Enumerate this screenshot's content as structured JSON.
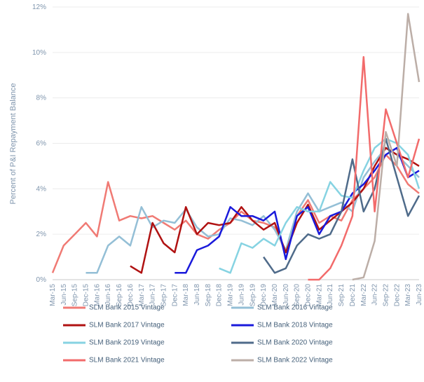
{
  "chart_data": {
    "type": "line",
    "y_axis_label": "Percent of P&I Repayment  Balance",
    "categories": [
      "Mar-15",
      "Jun-15",
      "Sep-15",
      "Dec-15",
      "Mar-16",
      "Jun-16",
      "Sep-16",
      "Dec-16",
      "Mar-17",
      "Jun-17",
      "Sep-17",
      "Dec-17",
      "Mar-18",
      "Jun-18",
      "Sep-18",
      "Dec-18",
      "Mar-19",
      "Jun-19",
      "Sep-19",
      "Dec-19",
      "Mar-20",
      "Jun-20",
      "Sep-20",
      "Dec-20",
      "Mar-21",
      "Jun-21",
      "Sep-21",
      "Dec-21",
      "Mar-22",
      "Jun-22",
      "Sep-22",
      "Dec-22",
      "Mar-23",
      "Jun-23"
    ],
    "ylim": [
      0,
      12
    ],
    "yticks": [
      {
        "value": 0,
        "label": "0%"
      },
      {
        "value": 2,
        "label": "2%"
      },
      {
        "value": 4,
        "label": "4%"
      },
      {
        "value": 6,
        "label": "6%"
      },
      {
        "value": 8,
        "label": "8%"
      },
      {
        "value": 10,
        "label": "10%"
      },
      {
        "value": 12,
        "label": "12%"
      }
    ],
    "grid": true,
    "legend": "bottom",
    "series": [
      {
        "name": "SLM Bank 2015 Vintage",
        "color": "#f07a74",
        "values": [
          0.3,
          1.5,
          2.0,
          2.5,
          1.9,
          4.3,
          2.6,
          2.8,
          2.7,
          2.8,
          2.5,
          2.2,
          2.6,
          2.0,
          1.8,
          2.2,
          2.5,
          3.0,
          2.6,
          2.5,
          2.3,
          1.2,
          2.8,
          3.5,
          2.5,
          2.8,
          2.6,
          3.5,
          4.0,
          4.5,
          5.5,
          5.0,
          4.2,
          3.8
        ]
      },
      {
        "name": "SLM Bank 2016 Vintage",
        "color": "#94bfd6",
        "values": [
          null,
          null,
          null,
          0.3,
          0.3,
          1.5,
          1.9,
          1.5,
          3.2,
          2.3,
          2.6,
          2.5,
          3.1,
          2.3,
          1.9,
          2.0,
          2.7,
          2.6,
          2.4,
          2.8,
          2.2,
          1.3,
          3.0,
          3.8,
          3.0,
          3.2,
          3.4,
          3.0,
          4.5,
          5.2,
          5.8,
          5.5,
          5.0,
          4.5
        ]
      },
      {
        "name": "SLM Bank 2017 Vintage",
        "color": "#b01212",
        "values": [
          null,
          null,
          null,
          null,
          null,
          null,
          null,
          0.6,
          0.3,
          2.5,
          1.6,
          1.2,
          3.2,
          2.0,
          2.5,
          2.4,
          2.5,
          3.2,
          2.6,
          2.2,
          2.5,
          1.2,
          2.5,
          3.3,
          2.2,
          2.6,
          3.0,
          3.4,
          4.0,
          5.0,
          5.8,
          5.5,
          5.3,
          5.0
        ]
      },
      {
        "name": "SLM Bank 2018 Vintage",
        "color": "#1a1adb",
        "values": [
          null,
          null,
          null,
          null,
          null,
          null,
          null,
          null,
          null,
          null,
          null,
          0.3,
          0.3,
          1.3,
          1.5,
          1.9,
          3.2,
          2.8,
          2.8,
          2.6,
          3.0,
          0.9,
          2.8,
          3.2,
          2.0,
          2.8,
          3.0,
          3.8,
          4.2,
          4.8,
          5.5,
          5.8,
          4.5,
          4.8
        ]
      },
      {
        "name": "SLM Bank 2019 Vintage",
        "color": "#86d3e2",
        "values": [
          null,
          null,
          null,
          null,
          null,
          null,
          null,
          null,
          null,
          null,
          null,
          null,
          null,
          null,
          null,
          0.5,
          0.3,
          1.6,
          1.4,
          1.8,
          1.5,
          2.5,
          3.2,
          3.0,
          3.0,
          4.3,
          3.7,
          3.6,
          4.8,
          5.8,
          6.2,
          6.0,
          5.5,
          4.0
        ]
      },
      {
        "name": "SLM Bank 2020 Vintage",
        "color": "#4f6b8a",
        "values": [
          null,
          null,
          null,
          null,
          null,
          null,
          null,
          null,
          null,
          null,
          null,
          null,
          null,
          null,
          null,
          null,
          null,
          null,
          null,
          1.0,
          0.3,
          0.5,
          1.5,
          2.0,
          1.8,
          2.0,
          3.0,
          5.3,
          3.0,
          4.0,
          6.2,
          4.5,
          2.8,
          3.7
        ]
      },
      {
        "name": "SLM Bank 2021 Vintage",
        "color": "#f26b6b",
        "values": [
          null,
          null,
          null,
          null,
          null,
          null,
          null,
          null,
          null,
          null,
          null,
          null,
          null,
          null,
          null,
          null,
          null,
          null,
          null,
          null,
          null,
          null,
          null,
          0.0,
          0.0,
          0.5,
          1.5,
          2.8,
          9.8,
          3.0,
          7.5,
          6.0,
          4.5,
          6.2
        ]
      },
      {
        "name": "SLM Bank 2022 Vintage",
        "color": "#bcaea7",
        "values": [
          null,
          null,
          null,
          null,
          null,
          null,
          null,
          null,
          null,
          null,
          null,
          null,
          null,
          null,
          null,
          null,
          null,
          null,
          null,
          null,
          null,
          null,
          null,
          null,
          null,
          null,
          null,
          0.0,
          0.1,
          1.7,
          6.5,
          5.0,
          11.7,
          8.7
        ]
      }
    ]
  }
}
